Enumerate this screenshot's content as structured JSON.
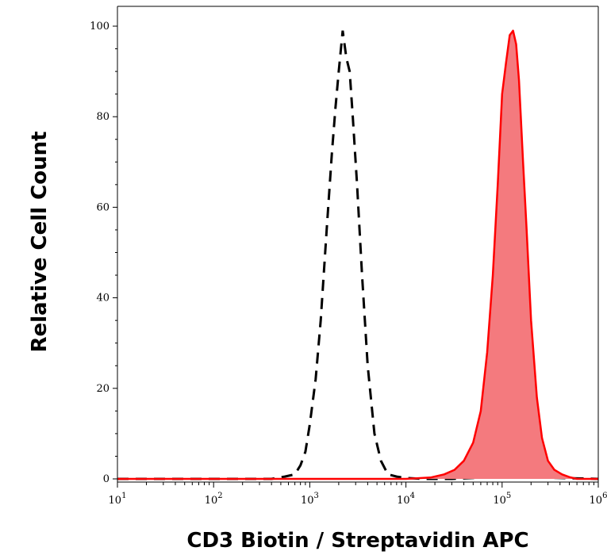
{
  "chart_data": {
    "type": "area",
    "xlabel": "CD3 Biotin / Streptavidin APC",
    "ylabel": "Relative Cell Count",
    "x_scale": "log",
    "xlim": [
      10,
      1000000
    ],
    "ylim": [
      0,
      105
    ],
    "x_ticks": [
      {
        "base": "10",
        "exp": "1",
        "value": 10
      },
      {
        "base": "10",
        "exp": "2",
        "value": 100
      },
      {
        "base": "10",
        "exp": "3",
        "value": 1000
      },
      {
        "base": "10",
        "exp": "4",
        "value": 10000
      },
      {
        "base": "10",
        "exp": "5",
        "value": 100000
      },
      {
        "base": "10",
        "exp": "6",
        "value": 1000000
      }
    ],
    "y_ticks": [
      "0",
      "20",
      "40",
      "60",
      "80",
      "100"
    ],
    "grid": false,
    "legend": "none",
    "series": [
      {
        "style": "dashed-line",
        "color": "#000000",
        "x": [
          10,
          100,
          400,
          550,
          700,
          800,
          900,
          1000,
          1150,
          1300,
          1500,
          1700,
          1850,
          2000,
          2200,
          2400,
          2600,
          2800,
          3100,
          3500,
          4000,
          4700,
          5500,
          6500,
          8000,
          10000,
          15000,
          30000,
          100000,
          1000000
        ],
        "y": [
          0,
          0,
          0,
          0.5,
          1,
          3,
          6,
          12,
          22,
          35,
          55,
          72,
          82,
          90,
          99,
          93,
          90,
          80,
          65,
          45,
          25,
          10,
          4,
          1,
          0.5,
          0.2,
          0,
          0,
          0.5,
          0
        ]
      },
      {
        "style": "filled-area",
        "color": "#ff0000",
        "fill": "#f47a7e",
        "x": [
          10,
          10000,
          18000,
          25000,
          32000,
          40000,
          50000,
          60000,
          70000,
          80000,
          90000,
          100000,
          110000,
          120000,
          130000,
          140000,
          150000,
          165000,
          180000,
          200000,
          230000,
          260000,
          300000,
          350000,
          420000,
          500000,
          600000,
          1000000
        ],
        "y": [
          0,
          0,
          0.3,
          1,
          2,
          4,
          8,
          15,
          28,
          45,
          65,
          85,
          92,
          98,
          99,
          96,
          88,
          70,
          55,
          35,
          18,
          9,
          4,
          2,
          1,
          0.4,
          0,
          0
        ]
      }
    ]
  }
}
